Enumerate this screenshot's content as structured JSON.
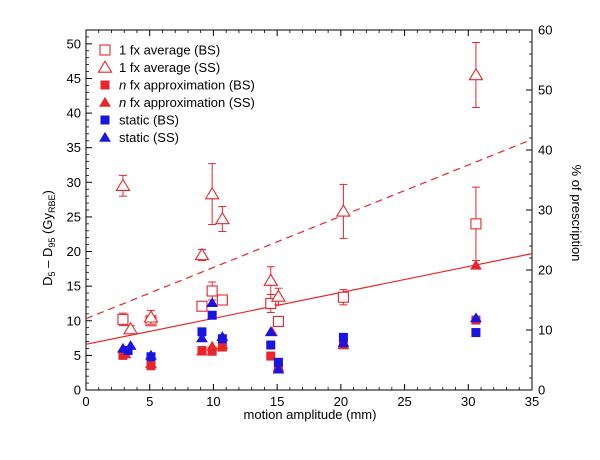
{
  "chart_data": {
    "type": "scatter",
    "xlabel": "motion amplitude (mm)",
    "ylabel_left_main": "D",
    "ylabel_left_sub1": "5",
    "ylabel_left_mid": " – D",
    "ylabel_left_sub2": "95",
    "ylabel_left_unit": " (Gy",
    "ylabel_left_unit_sub": "RBE",
    "ylabel_left_close": ")",
    "ylabel_right": "% of prescription",
    "xlim": [
      0,
      35
    ],
    "ylim_left": [
      0,
      52
    ],
    "ylim_right": [
      0,
      60
    ],
    "x_ticks": [
      "0",
      "5",
      "10",
      "15",
      "20",
      "25",
      "30",
      "35"
    ],
    "y_left_ticks": [
      "0",
      "5",
      "10",
      "15",
      "20",
      "25",
      "30",
      "35",
      "40",
      "45",
      "50"
    ],
    "y_right_ticks": [
      "0",
      "10",
      "20",
      "30",
      "40",
      "50",
      "60"
    ],
    "colors": {
      "red": "#e8262a",
      "blue": "#1a14e0",
      "axis": "#000000"
    },
    "legend": [
      {
        "label": "1 fx average (BS)",
        "italic_prefix": "",
        "marker": "square-open",
        "color": "#e8262a"
      },
      {
        "label": "1 fx average (SS)",
        "italic_prefix": "",
        "marker": "triangle-open",
        "color": "#e8262a"
      },
      {
        "label": " fx approximation (BS)",
        "italic_prefix": "n",
        "marker": "square-filled",
        "color": "#e8262a"
      },
      {
        "label": " fx approximation (SS)",
        "italic_prefix": "n",
        "marker": "triangle-filled",
        "color": "#e8262a"
      },
      {
        "label": "static (BS)",
        "italic_prefix": "",
        "marker": "square-filled",
        "color": "#1a14e0"
      },
      {
        "label": "static (SS)",
        "italic_prefix": "",
        "marker": "triangle-filled",
        "color": "#1a14e0"
      }
    ],
    "series": [
      {
        "name": "1 fx average (BS)",
        "marker": "square-open",
        "color": "#e8262a",
        "points": [
          {
            "x": 2.9,
            "y": 10.2,
            "yerr": 0.9
          },
          {
            "x": 5.1,
            "y": 10.0,
            "yerr": 0.6
          },
          {
            "x": 9.1,
            "y": 12.1,
            "yerr": 0.5
          },
          {
            "x": 9.9,
            "y": 14.3,
            "yerr": 1.3
          },
          {
            "x": 10.7,
            "y": 13.0,
            "yerr": 0.4
          },
          {
            "x": 14.5,
            "y": 12.5,
            "yerr": 1.3
          },
          {
            "x": 15.1,
            "y": 9.9,
            "yerr": 0.5
          },
          {
            "x": 20.2,
            "y": 13.4,
            "yerr": 1.1
          },
          {
            "x": 30.6,
            "y": 24.0,
            "yerr": 5.3
          }
        ]
      },
      {
        "name": "1 fx average (SS)",
        "marker": "triangle-open",
        "color": "#e8262a",
        "points": [
          {
            "x": 2.9,
            "y": 29.5,
            "yerr": 1.5
          },
          {
            "x": 3.5,
            "y": 8.8,
            "yerr": 0.5
          },
          {
            "x": 5.1,
            "y": 10.5,
            "yerr": 1.0
          },
          {
            "x": 9.1,
            "y": 19.5,
            "yerr": 0.8
          },
          {
            "x": 9.9,
            "y": 28.3,
            "yerr": 4.4
          },
          {
            "x": 10.7,
            "y": 24.7,
            "yerr": 1.8
          },
          {
            "x": 14.5,
            "y": 15.8,
            "yerr": 2.0
          },
          {
            "x": 15.1,
            "y": 13.5,
            "yerr": 1.2
          },
          {
            "x": 20.2,
            "y": 25.8,
            "yerr": 3.9
          },
          {
            "x": 30.6,
            "y": 45.5,
            "yerr": 4.7
          }
        ]
      },
      {
        "name": "n fx approximation (BS)",
        "marker": "square-filled",
        "color": "#e8262a",
        "points": [
          {
            "x": 2.9,
            "y": 5.0
          },
          {
            "x": 5.1,
            "y": 3.5
          },
          {
            "x": 9.1,
            "y": 5.7
          },
          {
            "x": 9.9,
            "y": 5.6
          },
          {
            "x": 10.7,
            "y": 6.2
          },
          {
            "x": 14.5,
            "y": 4.9
          },
          {
            "x": 15.1,
            "y": 3.2
          },
          {
            "x": 20.2,
            "y": 6.6
          },
          {
            "x": 30.6,
            "y": 10.1
          }
        ]
      },
      {
        "name": "n fx approximation (SS)",
        "marker": "triangle-filled",
        "color": "#e8262a",
        "points": [
          {
            "x": 3.1,
            "y": 5.2
          },
          {
            "x": 5.1,
            "y": 3.8
          },
          {
            "x": 9.1,
            "y": 5.6
          },
          {
            "x": 9.9,
            "y": 6.3
          },
          {
            "x": 10.7,
            "y": 6.5
          },
          {
            "x": 14.6,
            "y": 8.4
          },
          {
            "x": 15.1,
            "y": 3.3
          },
          {
            "x": 20.2,
            "y": 6.5
          },
          {
            "x": 30.6,
            "y": 18.0
          }
        ]
      },
      {
        "name": "static (BS)",
        "marker": "square-filled",
        "color": "#1a14e0",
        "points": [
          {
            "x": 3.3,
            "y": 5.7
          },
          {
            "x": 5.1,
            "y": 4.8
          },
          {
            "x": 9.1,
            "y": 8.4
          },
          {
            "x": 9.9,
            "y": 10.8
          },
          {
            "x": 10.7,
            "y": 7.4
          },
          {
            "x": 14.5,
            "y": 6.5
          },
          {
            "x": 15.1,
            "y": 4.0
          },
          {
            "x": 20.2,
            "y": 7.6
          },
          {
            "x": 30.6,
            "y": 8.3
          }
        ]
      },
      {
        "name": "static (SS)",
        "marker": "triangle-filled",
        "color": "#1a14e0",
        "points": [
          {
            "x": 2.9,
            "y": 6.0
          },
          {
            "x": 3.5,
            "y": 6.4
          },
          {
            "x": 5.1,
            "y": 5.0
          },
          {
            "x": 9.1,
            "y": 7.5
          },
          {
            "x": 9.9,
            "y": 12.6
          },
          {
            "x": 10.7,
            "y": 7.7
          },
          {
            "x": 14.5,
            "y": 8.4
          },
          {
            "x": 15.1,
            "y": 3.0
          },
          {
            "x": 20.2,
            "y": 6.8
          },
          {
            "x": 30.6,
            "y": 10.4
          }
        ]
      }
    ],
    "fit_lines": [
      {
        "name": "fit 1 fx average (SS)",
        "style": "dashed",
        "color": "#e8262a",
        "from": {
          "x": 0,
          "y": 10.3
        },
        "to": {
          "x": 35,
          "y": 36.2
        }
      },
      {
        "name": "fit 1 fx average (BS)",
        "style": "solid",
        "color": "#e8262a",
        "from": {
          "x": 0,
          "y": 6.6
        },
        "to": {
          "x": 35,
          "y": 19.7
        }
      }
    ]
  }
}
